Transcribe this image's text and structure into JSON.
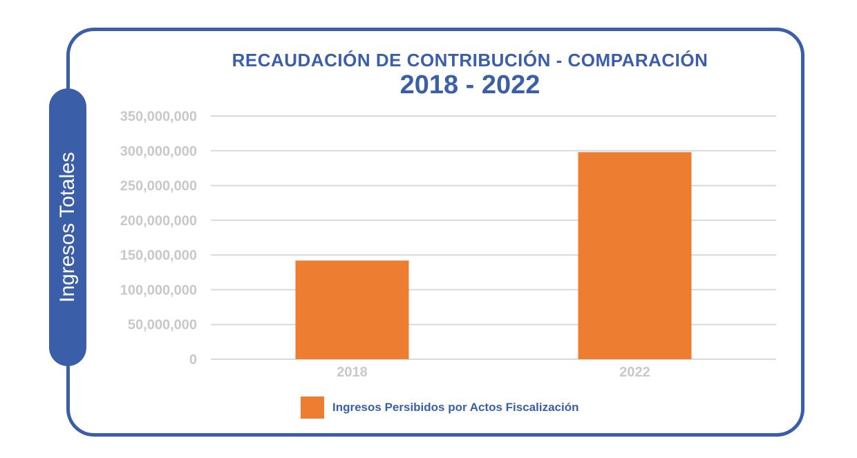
{
  "chart_data": {
    "type": "bar",
    "title": "RECAUDACIÓN DE CONTRIBUCIÓN - COMPARACIÓN",
    "subtitle": "2018  - 2022",
    "ylabel": "Ingresos Totales",
    "xlabel": "",
    "categories": [
      "2018",
      "2022"
    ],
    "series": [
      {
        "name": "Ingresos Persibidos por Actos Fiscalización",
        "values": [
          142000000,
          298000000
        ]
      }
    ],
    "ylim": [
      0,
      350000000
    ],
    "yticks": [
      "0",
      "50,000,000",
      "100,000,000",
      "150,000,000",
      "200,000,000",
      "250,000,000",
      "300,000,000",
      "350,000,000"
    ],
    "grid": true,
    "legend_position": "bottom",
    "colors": {
      "bar": "#ed7d31",
      "accent": "#3a5ea8",
      "grid": "#d9d9d9",
      "tick": "#c8c8c8"
    }
  }
}
